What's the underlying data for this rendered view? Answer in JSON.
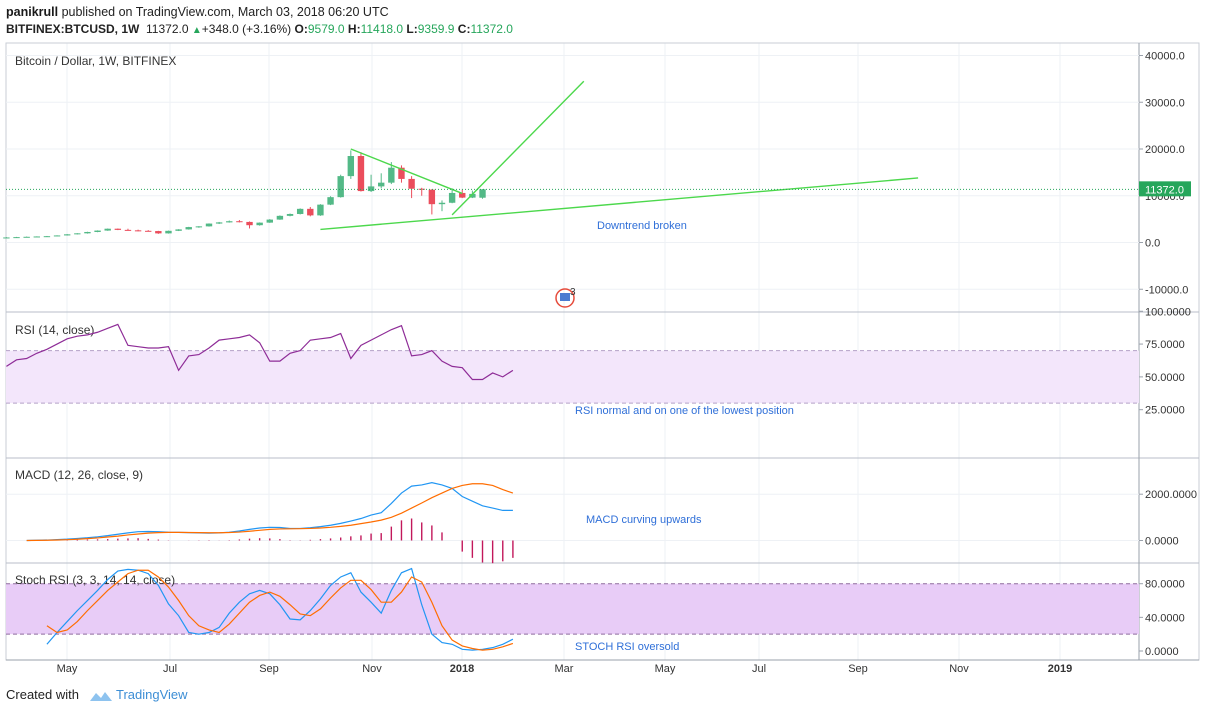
{
  "header": {
    "user": "panikrull",
    "published": "published on TradingView.com, March 03, 2018 06:20 UTC",
    "symbol": "BITFINEX:BTCUSD, 1W",
    "last": "11372.0",
    "change_arrow": "▲",
    "change": "+348.0 (+3.16%)",
    "o_label": "O:",
    "o": "9579.0",
    "h_label": "H:",
    "h": "11418.0",
    "l_label": "L:",
    "l": "9359.9",
    "c_label": "C:",
    "c": "11372.0"
  },
  "footer": {
    "created_with": "Created with",
    "brand": "TradingView"
  },
  "chart_data": [
    {
      "type": "candlestick",
      "title": "Bitcoin / Dollar, 1W, BITFINEX",
      "price_label": "11372.0",
      "y_ticks": [
        "40000.0",
        "30000.0",
        "20000.0",
        "10000.0",
        "0.0",
        "-10000.0"
      ],
      "x_ticks": [
        "May",
        "Jul",
        "Sep",
        "Nov",
        "2018",
        "Mar",
        "May",
        "Jul",
        "Sep",
        "Nov",
        "2019"
      ],
      "annotation": "Downtrend broken",
      "event_badge": "3",
      "candles": [
        {
          "o": 1000,
          "h": 1150,
          "l": 950,
          "c": 1080
        },
        {
          "o": 1080,
          "h": 1200,
          "l": 1040,
          "c": 1150
        },
        {
          "o": 1150,
          "h": 1280,
          "l": 1110,
          "c": 1220
        },
        {
          "o": 1220,
          "h": 1320,
          "l": 1180,
          "c": 1290
        },
        {
          "o": 1290,
          "h": 1400,
          "l": 1260,
          "c": 1350
        },
        {
          "o": 1350,
          "h": 1540,
          "l": 1320,
          "c": 1510
        },
        {
          "o": 1510,
          "h": 1800,
          "l": 1480,
          "c": 1750
        },
        {
          "o": 1750,
          "h": 2000,
          "l": 1710,
          "c": 1960
        },
        {
          "o": 1960,
          "h": 2300,
          "l": 1900,
          "c": 2250
        },
        {
          "o": 2250,
          "h": 2600,
          "l": 2200,
          "c": 2550
        },
        {
          "o": 2550,
          "h": 3000,
          "l": 2500,
          "c": 2950
        },
        {
          "o": 2950,
          "h": 3000,
          "l": 2650,
          "c": 2700
        },
        {
          "o": 2700,
          "h": 2950,
          "l": 2550,
          "c": 2600
        },
        {
          "o": 2600,
          "h": 2750,
          "l": 2400,
          "c": 2500
        },
        {
          "o": 2500,
          "h": 2650,
          "l": 2350,
          "c": 2450
        },
        {
          "o": 2450,
          "h": 2500,
          "l": 1850,
          "c": 1950
        },
        {
          "o": 1950,
          "h": 2550,
          "l": 1900,
          "c": 2500
        },
        {
          "o": 2500,
          "h": 2850,
          "l": 2450,
          "c": 2800
        },
        {
          "o": 2800,
          "h": 3350,
          "l": 2750,
          "c": 3300
        },
        {
          "o": 3300,
          "h": 3500,
          "l": 3150,
          "c": 3450
        },
        {
          "o": 3450,
          "h": 4100,
          "l": 3400,
          "c": 4050
        },
        {
          "o": 4050,
          "h": 4400,
          "l": 3950,
          "c": 4300
        },
        {
          "o": 4300,
          "h": 4700,
          "l": 4250,
          "c": 4550
        },
        {
          "o": 4550,
          "h": 4800,
          "l": 4300,
          "c": 4400
        },
        {
          "o": 4400,
          "h": 4500,
          "l": 3000,
          "c": 3700
        },
        {
          "o": 3700,
          "h": 4300,
          "l": 3600,
          "c": 4250
        },
        {
          "o": 4250,
          "h": 5000,
          "l": 4200,
          "c": 4900
        },
        {
          "o": 4900,
          "h": 5800,
          "l": 4850,
          "c": 5700
        },
        {
          "o": 5700,
          "h": 6200,
          "l": 5600,
          "c": 6100
        },
        {
          "o": 6100,
          "h": 7300,
          "l": 6000,
          "c": 7200
        },
        {
          "o": 7200,
          "h": 7600,
          "l": 5600,
          "c": 5800
        },
        {
          "o": 5800,
          "h": 8200,
          "l": 5700,
          "c": 8100
        },
        {
          "o": 8100,
          "h": 9900,
          "l": 8000,
          "c": 9700
        },
        {
          "o": 9700,
          "h": 14500,
          "l": 9600,
          "c": 14200
        },
        {
          "o": 14200,
          "h": 19700,
          "l": 13600,
          "c": 18500
        },
        {
          "o": 18500,
          "h": 19300,
          "l": 10900,
          "c": 11000
        },
        {
          "o": 11000,
          "h": 14500,
          "l": 10800,
          "c": 12000
        },
        {
          "o": 12000,
          "h": 14800,
          "l": 11600,
          "c": 12800
        },
        {
          "o": 12800,
          "h": 17200,
          "l": 12500,
          "c": 16000
        },
        {
          "o": 16000,
          "h": 16500,
          "l": 12800,
          "c": 13600
        },
        {
          "o": 13600,
          "h": 14200,
          "l": 9500,
          "c": 11500
        },
        {
          "o": 11500,
          "h": 11700,
          "l": 10000,
          "c": 11300
        },
        {
          "o": 11300,
          "h": 11400,
          "l": 6000,
          "c": 8200
        },
        {
          "o": 8200,
          "h": 9000,
          "l": 6700,
          "c": 8500
        },
        {
          "o": 8500,
          "h": 11600,
          "l": 8400,
          "c": 10600
        },
        {
          "o": 10600,
          "h": 11300,
          "l": 9500,
          "c": 9600
        },
        {
          "o": 9600,
          "h": 11100,
          "l": 9500,
          "c": 10400
        },
        {
          "o": 9579,
          "h": 11418,
          "l": 9359.9,
          "c": 11372
        }
      ],
      "trendlines": [
        {
          "from": {
            "week": 31,
            "price": 2800
          },
          "to": {
            "week": 90,
            "price": 13800
          }
        },
        {
          "from": {
            "week": 34,
            "price": 20000
          },
          "to": {
            "week": 45,
            "price": 10500
          }
        },
        {
          "from": {
            "week": 44,
            "price": 5900
          },
          "to": {
            "week": 57,
            "price": 34500
          }
        }
      ]
    },
    {
      "type": "line",
      "title": "RSI (14, close)",
      "y_ticks": [
        "100.0000",
        "75.0000",
        "50.0000",
        "25.0000"
      ],
      "band": [
        30,
        70
      ],
      "annotation": "RSI normal and on one of the lowest position",
      "series": [
        {
          "color": "#8e2c97",
          "values": [
            58,
            63,
            64,
            68,
            71,
            75,
            79,
            81,
            82,
            84,
            87,
            90,
            74,
            73,
            72,
            72,
            73,
            55,
            66,
            67,
            72,
            78,
            79,
            80,
            82,
            76,
            62,
            62,
            68,
            70,
            78,
            79,
            80,
            83,
            64,
            74,
            78,
            82,
            86,
            89,
            66,
            67,
            70,
            62,
            58,
            57,
            48,
            48,
            53,
            50,
            55
          ]
        }
      ]
    },
    {
      "type": "line",
      "title": "MACD (12, 26, close, 9)",
      "y_ticks": [
        "2000.0000",
        "0.0000"
      ],
      "annotation": "MACD curving upwards",
      "series": [
        {
          "name": "MACD",
          "color": "#2196f3",
          "values": [
            0,
            10,
            20,
            40,
            60,
            90,
            120,
            160,
            210,
            270,
            330,
            380,
            390,
            380,
            360,
            350,
            340,
            330,
            320,
            330,
            360,
            410,
            480,
            540,
            570,
            560,
            520,
            520,
            550,
            600,
            660,
            740,
            840,
            950,
            1100,
            1200,
            1600,
            2050,
            2350,
            2400,
            2500,
            2400,
            2250,
            1900,
            1700,
            1500,
            1400,
            1300,
            1300
          ]
        },
        {
          "name": "Signal",
          "color": "#ff6d00",
          "values": [
            0,
            5,
            10,
            20,
            35,
            55,
            80,
            110,
            150,
            190,
            240,
            280,
            320,
            340,
            350,
            350,
            345,
            340,
            335,
            335,
            345,
            365,
            400,
            440,
            480,
            500,
            505,
            510,
            520,
            540,
            570,
            610,
            660,
            730,
            800,
            880,
            1000,
            1180,
            1400,
            1620,
            1850,
            2050,
            2250,
            2380,
            2450,
            2450,
            2380,
            2200,
            2050
          ]
        }
      ],
      "histogram": [
        0,
        5,
        10,
        20,
        25,
        35,
        40,
        50,
        60,
        80,
        90,
        100,
        70,
        40,
        10,
        0,
        -5,
        -10,
        -15,
        -5,
        15,
        45,
        80,
        100,
        90,
        60,
        15,
        10,
        30,
        60,
        90,
        130,
        180,
        220,
        300,
        320,
        600,
        870,
        950,
        780,
        650,
        350,
        0,
        -480,
        -750,
        -950,
        -980,
        -900,
        -750
      ]
    },
    {
      "type": "line",
      "title": "Stoch RSI (3, 3, 14, 14, close)",
      "y_ticks": [
        "80.0000",
        "40.0000",
        "0.0000"
      ],
      "band": [
        20,
        80
      ],
      "annotation": "STOCH RSI oversold",
      "series": [
        {
          "name": "K",
          "color": "#2196f3",
          "values": [
            8,
            22,
            35,
            48,
            60,
            72,
            85,
            95,
            97,
            96,
            92,
            78,
            56,
            42,
            22,
            20,
            22,
            28,
            45,
            58,
            68,
            72,
            68,
            55,
            38,
            37,
            48,
            62,
            78,
            88,
            93,
            70,
            58,
            45,
            72,
            93,
            98,
            55,
            20,
            10,
            8,
            2,
            1,
            2,
            4,
            8,
            14
          ]
        },
        {
          "name": "D",
          "color": "#ff6d00",
          "values": [
            30,
            22,
            25,
            35,
            48,
            60,
            72,
            82,
            92,
            96,
            96,
            88,
            76,
            60,
            42,
            30,
            25,
            22,
            32,
            45,
            58,
            66,
            70,
            65,
            55,
            44,
            42,
            50,
            63,
            75,
            84,
            84,
            73,
            58,
            58,
            70,
            88,
            82,
            58,
            30,
            13,
            6,
            3,
            1,
            2,
            5,
            9
          ]
        }
      ]
    }
  ]
}
